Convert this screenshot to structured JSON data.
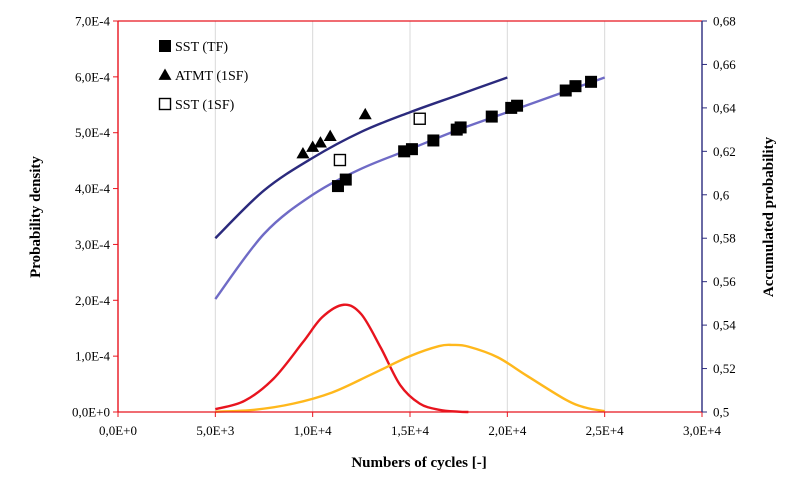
{
  "chart_data": {
    "type": "scatter",
    "xlabel": "Numbers of cycles [-]",
    "ylabel": "Probability density",
    "y2label": "Accumulated probability",
    "xlim": [
      0,
      30000
    ],
    "ylim": [
      0,
      0.0007
    ],
    "y2lim": [
      0.5,
      0.68
    ],
    "grid": "vertical",
    "legend_position": "top-left",
    "x_ticks": [
      "0,0E+0",
      "5,0E+3",
      "1,0E+4",
      "1,5E+4",
      "2,0E+4",
      "2,5E+4",
      "3,0E+4"
    ],
    "y_ticks": [
      "0,0E+0",
      "1,0E-4",
      "2,0E-4",
      "3,0E-4",
      "4,0E-4",
      "5,0E-4",
      "6,0E-4",
      "7,0E-4"
    ],
    "y2_ticks": [
      "0,5",
      "0,52",
      "0,54",
      "0,56",
      "0,58",
      "0,6",
      "0,62",
      "0,64",
      "0,66",
      "0,68"
    ],
    "colors": {
      "left_axis": "#e8141e",
      "right_axis": "#2b2a7d",
      "grid": "#d9d9d9",
      "red_curve": "#e8141e",
      "yellow_curve": "#ffb81c",
      "dark_blue_curve": "#2b2a7d",
      "light_blue_curve": "#6f6bc6"
    },
    "series": [
      {
        "name": "SST (TF)",
        "marker": "filled-square",
        "axis": "right",
        "points": [
          [
            11300,
            0.604
          ],
          [
            11700,
            0.607
          ],
          [
            14700,
            0.62
          ],
          [
            15100,
            0.621
          ],
          [
            16200,
            0.625
          ],
          [
            17400,
            0.63
          ],
          [
            17600,
            0.631
          ],
          [
            19200,
            0.636
          ],
          [
            20200,
            0.64
          ],
          [
            20500,
            0.641
          ],
          [
            23000,
            0.648
          ],
          [
            23500,
            0.65
          ],
          [
            24300,
            0.652
          ]
        ]
      },
      {
        "name": "ATMT (1SF)",
        "marker": "filled-triangle",
        "axis": "right",
        "points": [
          [
            9500,
            0.619
          ],
          [
            10000,
            0.622
          ],
          [
            10400,
            0.624
          ],
          [
            10900,
            0.627
          ],
          [
            12700,
            0.637
          ]
        ]
      },
      {
        "name": "SST (1SF)",
        "marker": "open-square",
        "axis": "right",
        "points": [
          [
            11400,
            0.616
          ],
          [
            15500,
            0.635
          ]
        ]
      }
    ],
    "curves": [
      {
        "axis": "right",
        "color_key": "dark_blue_curve",
        "x": [
          5000,
          7500,
          10000,
          12500,
          15000,
          17500,
          20000
        ],
        "y": [
          0.58,
          0.602,
          0.617,
          0.629,
          0.638,
          0.646,
          0.654
        ]
      },
      {
        "axis": "right",
        "color_key": "light_blue_curve",
        "x": [
          5000,
          7500,
          10000,
          12500,
          15000,
          17500,
          20000,
          22500,
          25000
        ],
        "y": [
          0.552,
          0.582,
          0.6,
          0.612,
          0.621,
          0.63,
          0.638,
          0.646,
          0.654
        ]
      },
      {
        "axis": "left",
        "color_key": "red_curve",
        "x": [
          5000,
          6500,
          8000,
          9500,
          10500,
          11600,
          12500,
          13500,
          14500,
          15500,
          16500,
          17500,
          18000
        ],
        "y": [
          5e-06,
          2e-05,
          6e-05,
          0.000125,
          0.00017,
          0.000192,
          0.000175,
          0.000115,
          4.8e-05,
          1.5e-05,
          4e-06,
          5e-07,
          0
        ]
      },
      {
        "axis": "left",
        "color_key": "yellow_curve",
        "x": [
          5000,
          7000,
          9000,
          11000,
          13000,
          15000,
          16500,
          17200,
          18000,
          19500,
          21000,
          23000,
          24000,
          25000
        ],
        "y": [
          5e-07,
          4e-06,
          1.5e-05,
          3.5e-05,
          6.7e-05,
          0.0001,
          0.000118,
          0.00012,
          0.000117,
          9.8e-05,
          6.5e-05,
          2.2e-05,
          8e-06,
          1.5e-06
        ]
      }
    ]
  }
}
